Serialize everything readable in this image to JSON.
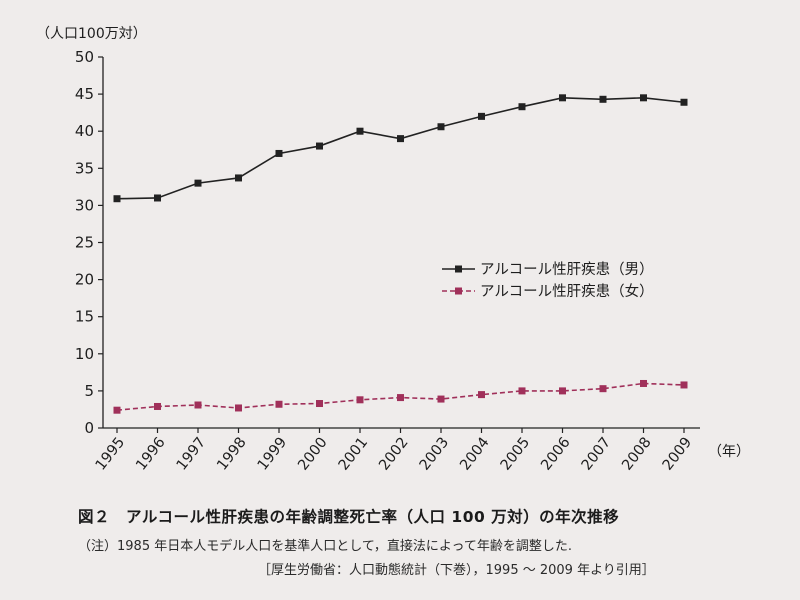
{
  "chart_data": {
    "type": "line",
    "ylabel": "（人口100万対）",
    "xlabel": "（年）",
    "ylim": [
      0,
      50
    ],
    "yticks": [
      0,
      5,
      10,
      15,
      20,
      25,
      30,
      35,
      40,
      45,
      50
    ],
    "x": [
      "1995",
      "1996",
      "1997",
      "1998",
      "1999",
      "2000",
      "2001",
      "2002",
      "2003",
      "2004",
      "2005",
      "2006",
      "2007",
      "2008",
      "2009"
    ],
    "series": [
      {
        "name": "アルコール性肝疾患（男）",
        "color": "#222222",
        "marker": "square",
        "line_style": "solid",
        "values": [
          30.9,
          31.0,
          33.0,
          33.7,
          37.0,
          38.0,
          40.0,
          39.0,
          40.6,
          42.0,
          43.3,
          44.5,
          44.3,
          44.5,
          43.9
        ]
      },
      {
        "name": "アルコール性肝疾患（女）",
        "color": "#a0305a",
        "marker": "square",
        "line_style": "dashed",
        "values": [
          2.4,
          2.9,
          3.1,
          2.7,
          3.2,
          3.3,
          3.8,
          4.1,
          3.9,
          4.5,
          5.0,
          5.0,
          5.3,
          6.0,
          5.8
        ]
      }
    ],
    "legend_position": "right",
    "grid": false
  },
  "caption": {
    "title": "図２　アルコール性肝疾患の年齢調整死亡率（人口 100 万対）の年次推移",
    "note": "（注）1985 年日本人モデル人口を基準人口として，直接法によって年齢を調整した.",
    "source": "［厚生労働省：人口動態統計（下巻），1995 ～ 2009 年より引用］"
  }
}
